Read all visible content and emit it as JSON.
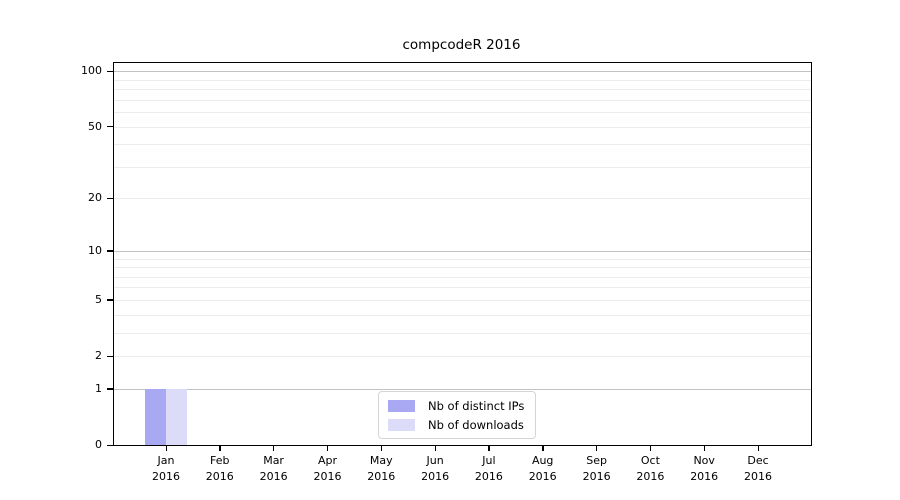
{
  "chart_data": {
    "type": "bar",
    "title": "compcodeR 2016",
    "xlabel": "",
    "ylabel": "",
    "categories": [
      "Jan",
      "Feb",
      "Mar",
      "Apr",
      "May",
      "Jun",
      "Jul",
      "Aug",
      "Sep",
      "Oct",
      "Nov",
      "Dec"
    ],
    "year_label": "2016",
    "series": [
      {
        "name": "Nb of distinct IPs",
        "color": "#a8a8f3",
        "values": [
          1,
          0,
          0,
          0,
          0,
          0,
          0,
          0,
          0,
          0,
          0,
          0
        ]
      },
      {
        "name": "Nb of downloads",
        "color": "#dcdcf9",
        "values": [
          1,
          0,
          0,
          0,
          0,
          0,
          0,
          0,
          0,
          0,
          0,
          0
        ]
      }
    ],
    "y_scale": "log1p",
    "ylim": [
      0,
      110
    ],
    "y_tick_values": [
      0,
      1,
      2,
      5,
      10,
      20,
      50,
      100
    ],
    "y_major_gridlines": [
      1,
      10,
      100
    ],
    "y_minor_gridlines": [
      2,
      3,
      4,
      5,
      6,
      7,
      8,
      9,
      20,
      30,
      40,
      50,
      60,
      70,
      80,
      90
    ],
    "grid": "horizontal",
    "legend_position": "bottom-center",
    "colors": {
      "major_gridline": "#c3c3c3",
      "minor_gridline": "#ececec",
      "axis": "#000000",
      "background": "#ffffff",
      "legend_border": "#d5d5d5"
    }
  }
}
